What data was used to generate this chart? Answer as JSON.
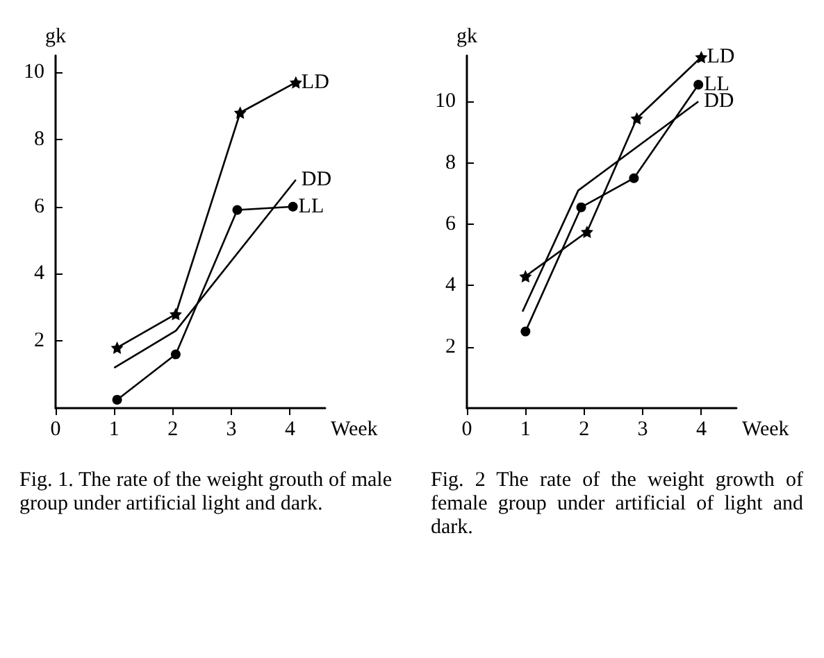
{
  "chart_data": [
    {
      "type": "line",
      "xlabel": "Week",
      "ylabel": "gk",
      "xlim": [
        0,
        4.6
      ],
      "ylim": [
        0,
        10.5
      ],
      "xticks": [
        0,
        1,
        2,
        3,
        4
      ],
      "yticks": [
        2,
        4,
        6,
        8,
        10
      ],
      "grid": false,
      "legend": false,
      "annotations": [
        "Fig. 1.  The rate of the weight grouth of male group under artificial light and dark."
      ],
      "series": [
        {
          "name": "LD",
          "color": "#000000",
          "marker": "star",
          "x": [
            1.05,
            2.05,
            3.15,
            4.1
          ],
          "values": [
            1.8,
            2.8,
            8.8,
            9.7
          ]
        },
        {
          "name": "DD",
          "color": "#000000",
          "marker": "none",
          "x": [
            1.0,
            2.05,
            4.1
          ],
          "values": [
            1.2,
            2.3,
            6.8
          ]
        },
        {
          "name": "LL",
          "color": "#000000",
          "marker": "circle",
          "x": [
            1.05,
            2.05,
            3.1,
            4.05
          ],
          "values": [
            0.25,
            1.6,
            5.9,
            6.0
          ]
        }
      ]
    },
    {
      "type": "line",
      "xlabel": "Week",
      "ylabel": "gk",
      "xlim": [
        0,
        4.6
      ],
      "ylim": [
        0,
        11.5
      ],
      "xticks": [
        0,
        1,
        2,
        3,
        4
      ],
      "yticks": [
        2,
        4,
        6,
        8,
        10
      ],
      "grid": false,
      "legend": false,
      "annotations": [
        "Fig. 2  The rate of the weight growth of female group under artificial of light and dark."
      ],
      "series": [
        {
          "name": "LD",
          "color": "#000000",
          "marker": "star",
          "x": [
            1.0,
            2.05,
            2.9,
            4.0
          ],
          "values": [
            4.3,
            5.75,
            9.45,
            11.45
          ]
        },
        {
          "name": "LL",
          "color": "#000000",
          "marker": "circle",
          "x": [
            1.0,
            1.95,
            2.85,
            3.95
          ],
          "values": [
            2.5,
            6.55,
            7.5,
            10.55
          ]
        },
        {
          "name": "DD",
          "color": "#000000",
          "marker": "none",
          "x": [
            0.95,
            1.9,
            3.95
          ],
          "values": [
            3.15,
            7.1,
            10.0
          ]
        }
      ]
    }
  ]
}
